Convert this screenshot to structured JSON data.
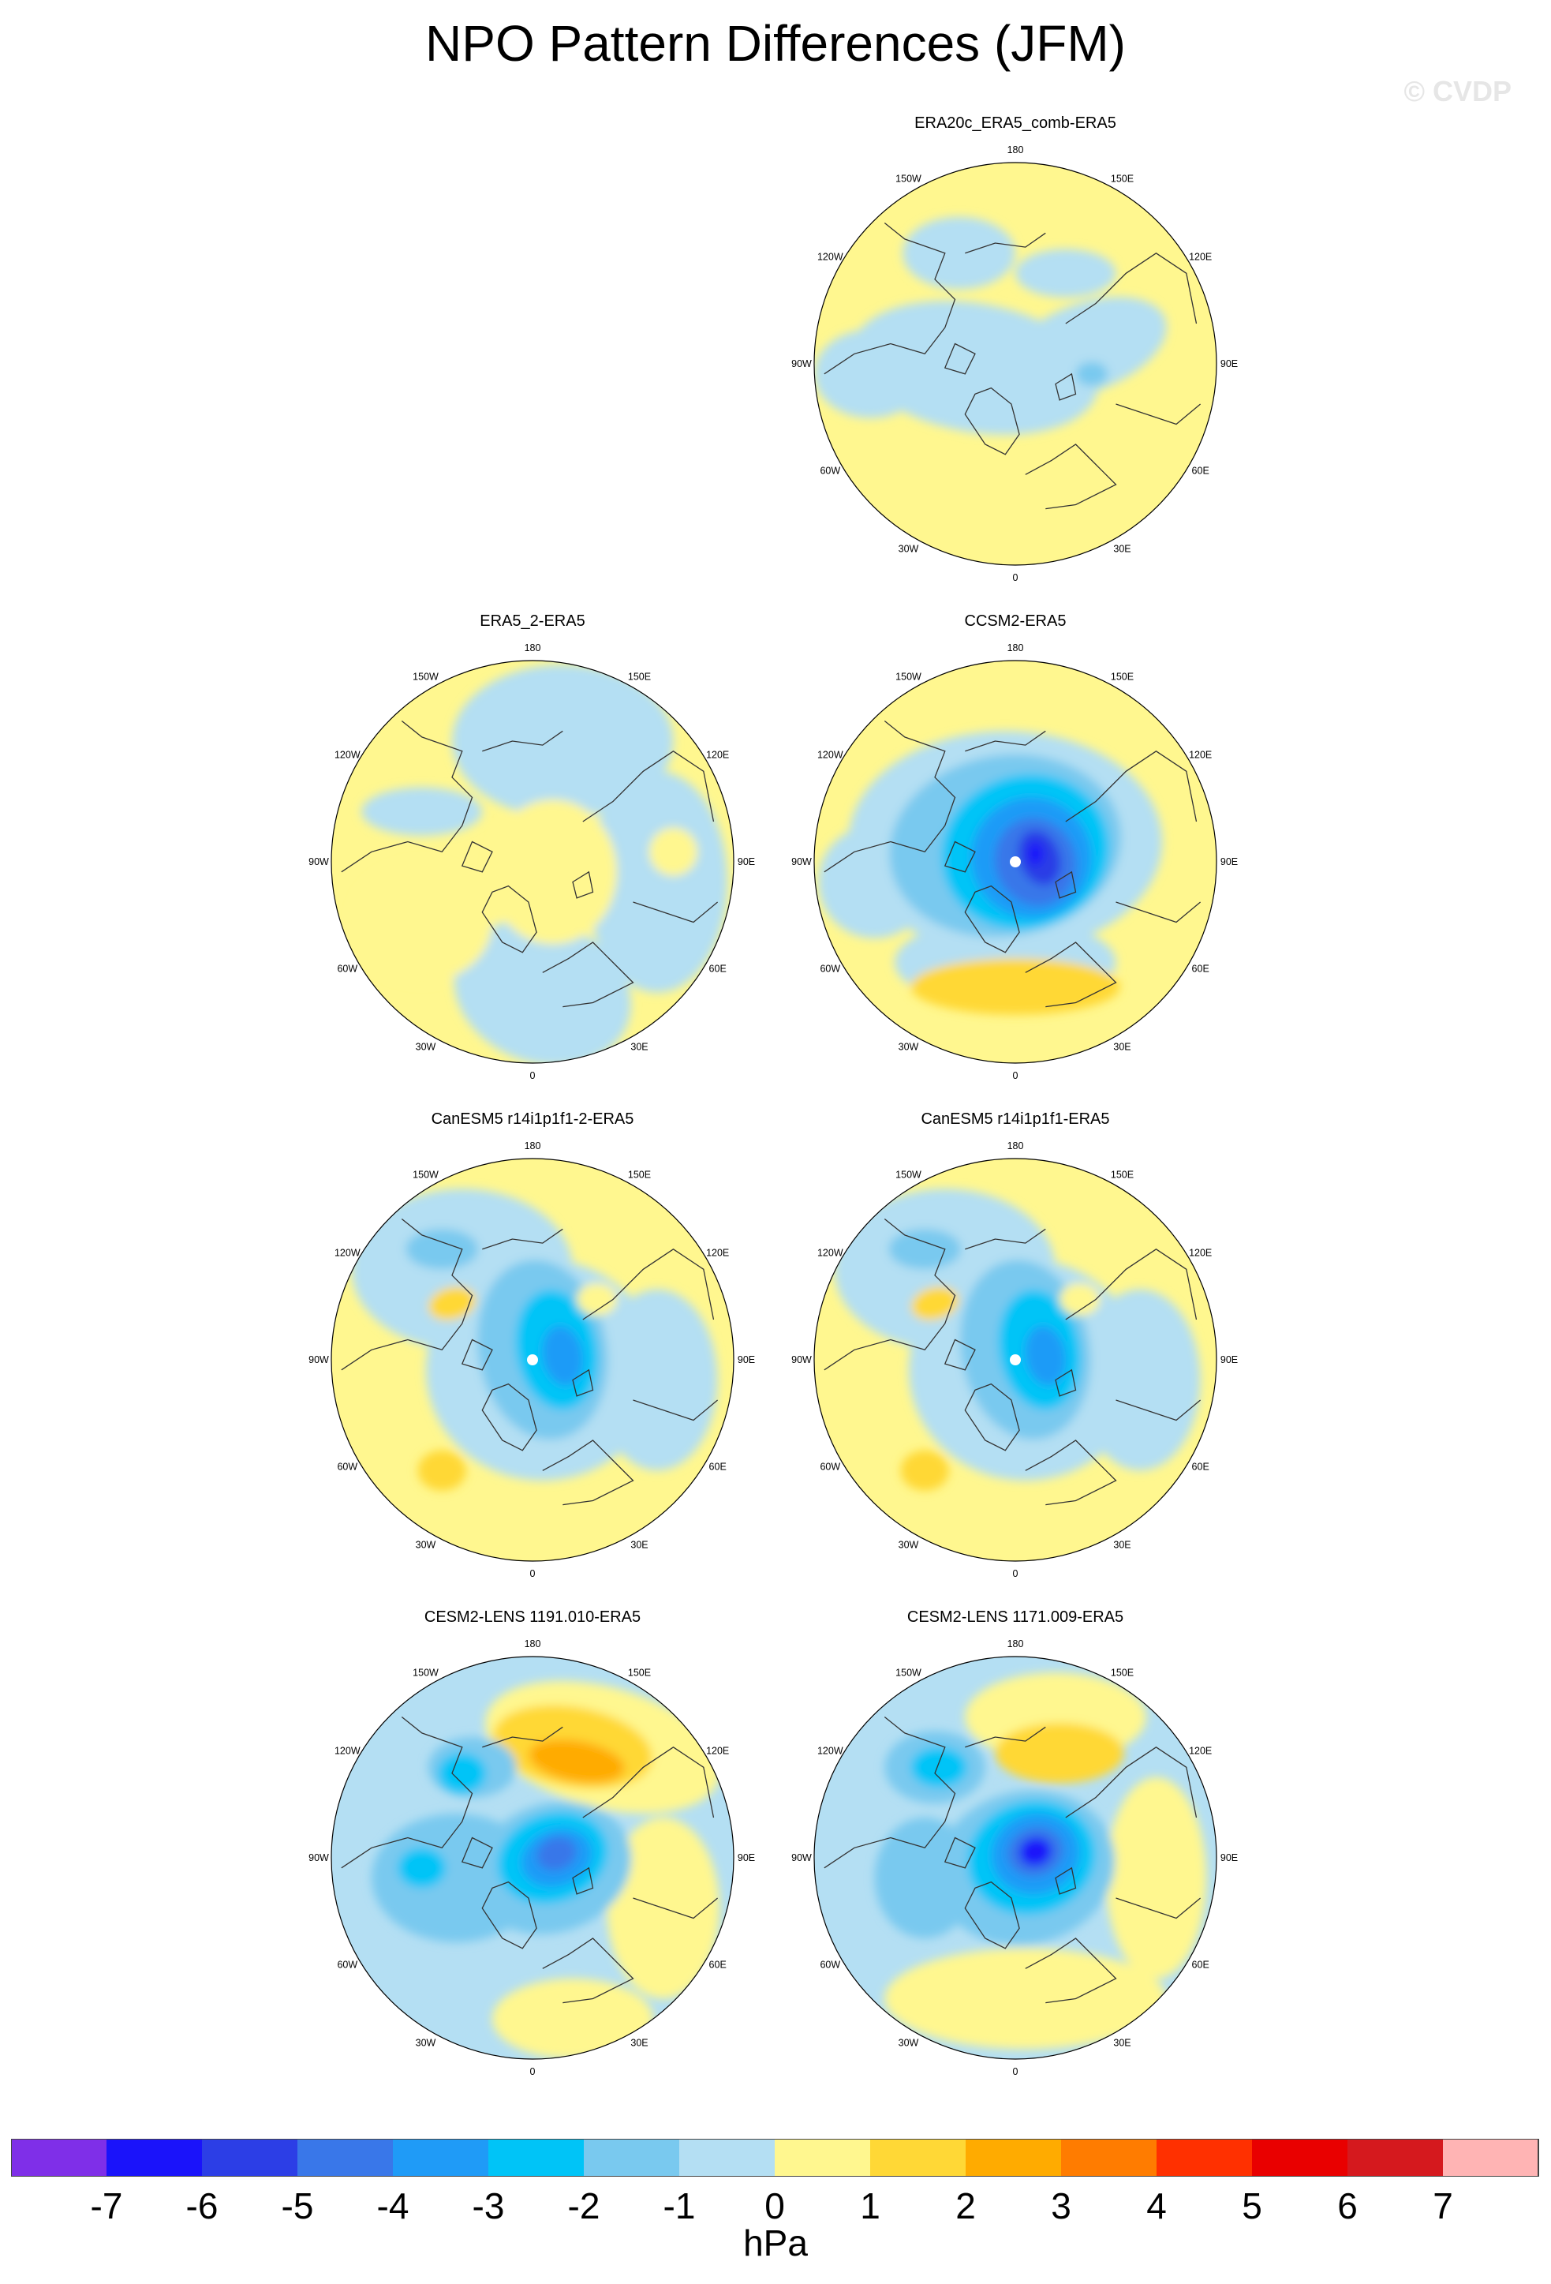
{
  "title": "NPO Pattern Differences (JFM)",
  "watermark": "© CVDP",
  "units": "hPa",
  "colors": {
    "scale": [
      "#7f2fe8",
      "#1a13fa",
      "#2c3ee6",
      "#3977e9",
      "#1f9bf7",
      "#00c4f7",
      "#79c9ef",
      "#b4dff3",
      "#fff78f",
      "#ffd836",
      "#ffab00",
      "#ff7c00",
      "#ff3000",
      "#e90000",
      "#d5191e",
      "#ffb4b4"
    ]
  },
  "colorbar_ticks": [
    "-7",
    "-6",
    "-5",
    "-4",
    "-3",
    "-2",
    "-1",
    "0",
    "1",
    "2",
    "3",
    "4",
    "5",
    "6",
    "7"
  ],
  "longitude_labels": {
    "top": "180",
    "bottom": "0",
    "left": "90W",
    "right": "90E",
    "upper_left_1": "150W",
    "upper_right_1": "150E",
    "upper_left_2": "120W",
    "upper_right_2": "120E",
    "lower_left_2": "60W",
    "lower_right_2": "60E",
    "lower_left_1": "30W",
    "lower_right_1": "30E"
  },
  "panels": [
    {
      "title": "ERA20c_ERA5_comb-ERA5",
      "pattern": "era20c"
    },
    {
      "title": "ERA5_2-ERA5",
      "pattern": "era5_2"
    },
    {
      "title": "CCSM2-ERA5",
      "pattern": "ccsm2"
    },
    {
      "title": "CanESM5 r14i1p1f1-2-ERA5",
      "pattern": "canesm_a"
    },
    {
      "title": "CanESM5 r14i1p1f1-ERA5",
      "pattern": "canesm_b"
    },
    {
      "title": "CESM2-LENS 1191.010-ERA5",
      "pattern": "cesm_a"
    },
    {
      "title": "CESM2-LENS 1171.009-ERA5",
      "pattern": "cesm_b"
    }
  ]
}
